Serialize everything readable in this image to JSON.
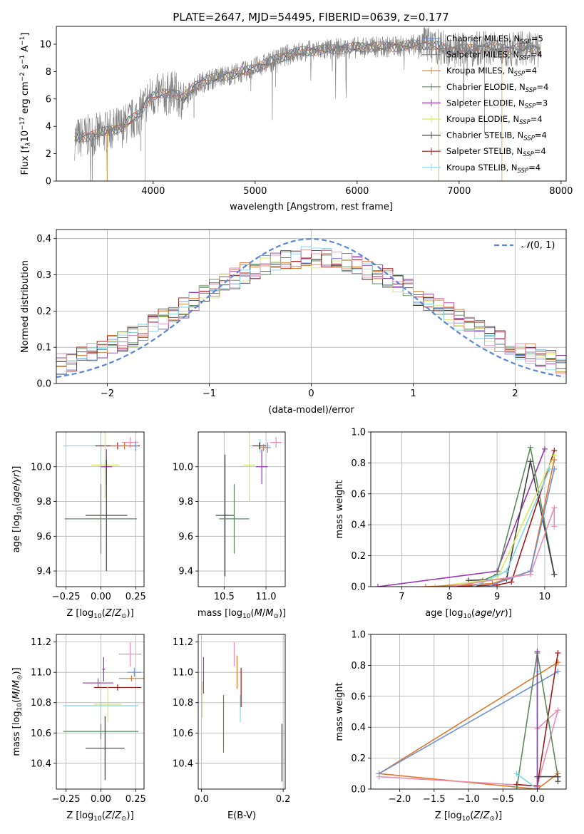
{
  "figure": {
    "title": "PLATE=2647, MJD=54495, FIBERID=0639, z=0.177"
  },
  "colors": {
    "Chabrier MILES": "#6f91d8",
    "Salpeter MILES": "#8c8c8c",
    "Kroupa MILES": "#e0782a",
    "Chabrier ELODIE": "#5a8a5e",
    "Salpeter ELODIE": "#9a35b5",
    "Kroupa ELODIE": "#d4e860",
    "Chabrier STELIB": "#404040",
    "Salpeter STELIB": "#a01818",
    "Kroupa STELIB": "#7fd6e6",
    "pink": "#e88cb4",
    "normal": "#5b86d6"
  },
  "chart_data": [
    {
      "id": "spectrum",
      "type": "line",
      "xlabel": "wavelength [Angstrom, rest frame]",
      "ylabel_parts": [
        "Flux [f",
        "λ",
        "10",
        "−17",
        " erg cm",
        "−2",
        " s",
        "−1",
        " A",
        "−1",
        "]"
      ],
      "xlim": [
        3050,
        8050
      ],
      "ylim": [
        0,
        11.3
      ],
      "xticks": [
        4000,
        5000,
        6000,
        7000,
        8000
      ],
      "yticks": [
        0,
        2,
        4,
        6,
        8,
        10
      ],
      "legend_position": "right",
      "legend": [
        {
          "text": "Chabrier MILES, N",
          "sub": "SSP",
          "tail": "=5",
          "color": "Chabrier MILES"
        },
        {
          "text": "Salpeter MILES, N",
          "sub": "SSP",
          "tail": "=4",
          "color": "Salpeter MILES"
        },
        {
          "text": "Kroupa MILES, N",
          "sub": "SSP",
          "tail": "=4",
          "color": "Kroupa MILES"
        },
        {
          "text": "Chabrier ELODIE, N",
          "sub": "SSP",
          "tail": "=4",
          "color": "Chabrier ELODIE"
        },
        {
          "text": "Salpeter ELODIE, N",
          "sub": "SSP",
          "tail": "=3",
          "color": "Salpeter ELODIE"
        },
        {
          "text": "Kroupa ELODIE, N",
          "sub": "SSP",
          "tail": "=4",
          "color": "Kroupa ELODIE"
        },
        {
          "text": "Chabrier STELIB, N",
          "sub": "SSP",
          "tail": "=4",
          "color": "Chabrier STELIB"
        },
        {
          "text": "Salpeter STELIB, N",
          "sub": "SSP",
          "tail": "=4",
          "color": "Salpeter STELIB"
        },
        {
          "text": "Kroupa STELIB, N",
          "sub": "SSP",
          "tail": "=4",
          "color": "Kroupa STELIB"
        }
      ],
      "continuum": [
        [
          3230,
          3.1
        ],
        [
          3500,
          3.5
        ],
        [
          3700,
          4.0
        ],
        [
          3850,
          4.8
        ],
        [
          3950,
          6.0
        ],
        [
          4050,
          6.3
        ],
        [
          4200,
          6.5
        ],
        [
          4300,
          6.0
        ],
        [
          4400,
          6.9
        ],
        [
          4500,
          7.3
        ],
        [
          4700,
          7.7
        ],
        [
          4900,
          8.0
        ],
        [
          5000,
          8.3
        ],
        [
          5150,
          8.7
        ],
        [
          5300,
          9.2
        ],
        [
          5500,
          9.5
        ],
        [
          5700,
          9.6
        ],
        [
          5900,
          9.7
        ],
        [
          6100,
          9.8
        ],
        [
          6300,
          9.8
        ],
        [
          6500,
          9.9
        ],
        [
          6700,
          10.0
        ],
        [
          6900,
          9.6
        ],
        [
          7100,
          9.6
        ],
        [
          7300,
          9.8
        ],
        [
          7500,
          9.6
        ],
        [
          7700,
          9.8
        ],
        [
          7800,
          9.5
        ]
      ]
    },
    {
      "id": "residual-histogram",
      "type": "histogram",
      "xlabel": "(data-model)/error",
      "ylabel": "Normed distribution",
      "xlim": [
        -2.5,
        2.5
      ],
      "ylim": [
        0,
        0.425
      ],
      "xticks": [
        -2,
        -1,
        0,
        1,
        2
      ],
      "xtick_labels": [
        "−2",
        "−1",
        "0",
        "1",
        "2"
      ],
      "yticks": [
        0,
        0.1,
        0.2,
        0.3,
        0.4
      ],
      "ytick_labels": [
        "0.0",
        "0.1",
        "0.2",
        "0.3",
        "0.4"
      ],
      "grid": true,
      "bin_width": 0.1,
      "legend": {
        "text": "(0, 1)",
        "symbol": "𝒩",
        "position": "top-right"
      },
      "reference": {
        "type": "normal",
        "mean": 0,
        "sigma": 1,
        "style": "dashed"
      }
    },
    {
      "id": "age-vs-Z",
      "type": "errorbar",
      "xlabel": "Z [log10(Z/Z⊙)]",
      "ylabel": "age  [log10(age/yr)]",
      "xlim": [
        -0.32,
        0.31
      ],
      "ylim": [
        9.31,
        10.2
      ],
      "xticks": [
        -0.25,
        0,
        0.25
      ],
      "xtick_labels": [
        "−0.25",
        "0.00",
        "0.25"
      ],
      "yticks": [
        9.4,
        9.6,
        9.8,
        10.0
      ],
      "ytick_labels": [
        "9.4",
        "9.6",
        "9.8",
        "10.0"
      ],
      "points": [
        {
          "c": "Kroupa STELIB",
          "x": 0.0,
          "y": 10.12,
          "xerr": 0.27,
          "yerr": 0.15
        },
        {
          "c": "pink",
          "x": 0.21,
          "y": 10.14,
          "xerr": 0.06,
          "yerr": 0.03
        },
        {
          "c": "Salpeter STELIB",
          "x": 0.12,
          "y": 10.12,
          "xerr": 0.16,
          "yerr": 0.02
        },
        {
          "c": "Kroupa MILES",
          "x": 0.17,
          "y": 10.12,
          "xerr": 0.1,
          "yerr": 0.02
        },
        {
          "c": "Chabrier MILES",
          "x": 0.25,
          "y": 10.12,
          "xerr": 0.02,
          "yerr": 0.03
        },
        {
          "c": "Kroupa ELODIE",
          "x": 0.03,
          "y": 10.01,
          "xerr": 0.1,
          "yerr": 0.19
        },
        {
          "c": "Salpeter ELODIE",
          "x": 0.04,
          "y": 10.0,
          "xerr": 0.04,
          "yerr": 0.1
        },
        {
          "c": "Chabrier STELIB",
          "x": 0.04,
          "y": 9.72,
          "xerr": 0.15,
          "yerr": 0.32
        },
        {
          "c": "Chabrier ELODIE",
          "x": 0.0,
          "y": 9.7,
          "xerr": 0.26,
          "yerr": 0.2
        }
      ]
    },
    {
      "id": "age-vs-mass",
      "type": "errorbar",
      "xlabel": "mass [log10(M/M⊙)]",
      "ylabel": "",
      "xlim": [
        10.19,
        11.23
      ],
      "ylim": [
        9.31,
        10.2
      ],
      "xticks": [
        10.5,
        11.0
      ],
      "xtick_labels": [
        "10.5",
        "11.0"
      ],
      "yticks": [
        9.4,
        9.6,
        9.8,
        10.0
      ],
      "ytick_labels": [
        "9.4",
        "9.6",
        "9.8",
        "10.0"
      ],
      "points": [
        {
          "c": "pink",
          "x": 11.12,
          "y": 10.14,
          "xerr": 0.07,
          "yerr": 0.03
        },
        {
          "c": "Kroupa STELIB",
          "x": 10.93,
          "y": 10.12,
          "xerr": 0.12,
          "yerr": 0.04
        },
        {
          "c": "Salpeter STELIB",
          "x": 10.92,
          "y": 10.12,
          "xerr": 0.08,
          "yerr": 0.02
        },
        {
          "c": "Chabrier MILES",
          "x": 11.02,
          "y": 10.11,
          "xerr": 0.04,
          "yerr": 0.03
        },
        {
          "c": "Kroupa MILES",
          "x": 10.97,
          "y": 10.11,
          "xerr": 0.05,
          "yerr": 0.02
        },
        {
          "c": "Kroupa ELODIE",
          "x": 10.8,
          "y": 10.01,
          "xerr": 0.07,
          "yerr": 0.21
        },
        {
          "c": "Salpeter ELODIE",
          "x": 10.95,
          "y": 10.0,
          "xerr": 0.07,
          "yerr": 0.1
        },
        {
          "c": "Chabrier STELIB",
          "x": 10.51,
          "y": 9.72,
          "xerr": 0.11,
          "yerr": 0.35
        },
        {
          "c": "Chabrier ELODIE",
          "x": 10.62,
          "y": 9.7,
          "xerr": 0.18,
          "yerr": 0.2
        }
      ]
    },
    {
      "id": "weight-vs-age",
      "type": "line",
      "xlabel": "age  [log10(age/yr)]",
      "ylabel": "mass weight",
      "xlim": [
        6.35,
        10.45
      ],
      "ylim": [
        0,
        1.0
      ],
      "xticks": [
        7,
        8,
        9,
        10
      ],
      "xtick_labels": [
        "7",
        "8",
        "9",
        "10"
      ],
      "yticks": [
        0,
        0.2,
        0.4,
        0.6,
        0.8,
        1.0
      ],
      "ytick_labels": [
        "0.0",
        "0.2",
        "0.4",
        "0.6",
        "0.8",
        "1.0"
      ],
      "grid": true,
      "series": [
        {
          "c": "Salpeter ELODIE",
          "x": [
            6.5,
            9.0,
            10.0
          ],
          "y": [
            0.0,
            0.1,
            0.89
          ]
        },
        {
          "c": "Chabrier ELODIE",
          "x": [
            8.7,
            9.0,
            9.7,
            10.2
          ],
          "y": [
            0.04,
            0.08,
            0.9,
            0.08
          ]
        },
        {
          "c": "Chabrier STELIB",
          "x": [
            8.4,
            9.2,
            9.7,
            10.2
          ],
          "y": [
            0.04,
            0.05,
            0.81,
            0.08
          ]
        },
        {
          "c": "Salpeter STELIB",
          "x": [
            8.0,
            9.0,
            9.3,
            10.2
          ],
          "y": [
            0.0,
            0.01,
            0.03,
            0.88
          ]
        },
        {
          "c": "Kroupa ELODIE",
          "x": [
            7.7,
            9.0,
            10.2
          ],
          "y": [
            0.0,
            0.05,
            0.85
          ]
        },
        {
          "c": "Kroupa MILES",
          "x": [
            7.5,
            8.9,
            9.7,
            10.2
          ],
          "y": [
            0.0,
            0.02,
            0.1,
            0.82
          ]
        },
        {
          "c": "Chabrier MILES",
          "x": [
            8.8,
            9.7,
            10.2
          ],
          "y": [
            0.0,
            0.1,
            0.76
          ]
        },
        {
          "c": "Kroupa STELIB",
          "x": [
            8.5,
            9.2,
            10.1
          ],
          "y": [
            0.0,
            0.1,
            0.76
          ]
        },
        {
          "c": "pink",
          "x": [
            8.0,
            9.7,
            10.2,
            10.2
          ],
          "y": [
            0.0,
            0.08,
            0.51,
            0.39
          ]
        }
      ]
    },
    {
      "id": "mass-vs-Z",
      "type": "errorbar",
      "xlabel": "Z [log10(Z/Z⊙)]",
      "ylabel": "mass [log10(M/M⊙)]",
      "xlim": [
        -0.32,
        0.31
      ],
      "ylim": [
        10.23,
        11.25
      ],
      "xticks": [
        -0.25,
        0,
        0.25
      ],
      "xtick_labels": [
        "−0.25",
        "0.00",
        "0.25"
      ],
      "yticks": [
        10.4,
        10.6,
        10.8,
        11.0,
        11.2
      ],
      "ytick_labels": [
        "10.4",
        "10.6",
        "10.8",
        "11.0",
        "11.2"
      ],
      "points": [
        {
          "c": "pink",
          "x": 0.21,
          "y": 11.12,
          "xerr": 0.08,
          "yerr": 0.08
        },
        {
          "c": "Salpeter ELODIE",
          "x": 0.02,
          "y": 11.02,
          "xerr": 0.01,
          "yerr": 0.08
        },
        {
          "c": "Chabrier MILES",
          "x": 0.24,
          "y": 11.0,
          "xerr": 0.05,
          "yerr": 0.03
        },
        {
          "c": "Kroupa MILES",
          "x": 0.22,
          "y": 10.96,
          "xerr": 0.09,
          "yerr": 0.02
        },
        {
          "c": "Salpeter ELODIE",
          "x": -0.02,
          "y": 10.93,
          "xerr": 0.11,
          "yerr": 0.03
        },
        {
          "c": "Salpeter STELIB",
          "x": 0.12,
          "y": 10.9,
          "xerr": 0.17,
          "yerr": 0.02
        },
        {
          "c": "Kroupa ELODIE",
          "x": 0.05,
          "y": 10.79,
          "xerr": 0.1,
          "yerr": 0.12
        },
        {
          "c": "Kroupa STELIB",
          "x": 0.0,
          "y": 10.78,
          "xerr": 0.27,
          "yerr": 0.1
        },
        {
          "c": "Chabrier ELODIE",
          "x": 0.0,
          "y": 10.61,
          "xerr": 0.27,
          "yerr": 0.05
        },
        {
          "c": "Chabrier STELIB",
          "x": 0.03,
          "y": 10.5,
          "xerr": 0.14,
          "yerr": 0.21
        }
      ]
    },
    {
      "id": "mass-vs-EBV",
      "type": "errorbar",
      "xlabel": "E(B-V)",
      "ylabel": "",
      "xlim": [
        -0.008,
        0.205
      ],
      "ylim": [
        10.23,
        11.25
      ],
      "xticks": [
        0,
        0.2
      ],
      "xtick_labels": [
        "0.0",
        "0.2"
      ],
      "yticks": [
        10.4,
        10.6,
        10.8,
        11.0,
        11.2
      ],
      "ytick_labels": [
        "10.4",
        "10.6",
        "10.8",
        "11.0",
        "11.2"
      ],
      "points": [
        {
          "c": "pink",
          "x": 0.08,
          "y": 11.12,
          "xerr": 0,
          "yerr": 0.08
        },
        {
          "c": "Salpeter ELODIE",
          "x": 0.005,
          "y": 10.98,
          "xerr": 0,
          "yerr": 0.12
        },
        {
          "c": "Kroupa MILES",
          "x": 0.087,
          "y": 11.0,
          "xerr": 0,
          "yerr": 0.11
        },
        {
          "c": "Salpeter STELIB",
          "x": 0.097,
          "y": 10.9,
          "xerr": 0,
          "yerr": 0.13
        },
        {
          "c": "Kroupa ELODIE",
          "x": 0.002,
          "y": 10.82,
          "xerr": 0,
          "yerr": 0.12
        },
        {
          "c": "Kroupa STELIB",
          "x": 0.095,
          "y": 10.76,
          "xerr": 0,
          "yerr": 0.09
        },
        {
          "c": "Chabrier ELODIE",
          "x": 0.054,
          "y": 10.66,
          "xerr": 0,
          "yerr": 0.19
        },
        {
          "c": "Chabrier STELIB",
          "x": 0.197,
          "y": 10.47,
          "xerr": 0,
          "yerr": 0.19
        }
      ]
    },
    {
      "id": "weight-vs-Z",
      "type": "line",
      "xlabel": "Z [log10(Z/Z⊙)]",
      "ylabel": "mass weight",
      "xlim": [
        -2.42,
        0.42
      ],
      "ylim": [
        0,
        1.0
      ],
      "xticks": [
        -2.0,
        -1.5,
        -1.0,
        -0.5,
        0.0
      ],
      "xtick_labels": [
        "−2.0",
        "−1.5",
        "−1.0",
        "−0.5",
        "0.0"
      ],
      "yticks": [
        0,
        0.2,
        0.4,
        0.6,
        0.8,
        1.0
      ],
      "ytick_labels": [
        "0.0",
        "0.2",
        "0.4",
        "0.6",
        "0.8",
        "1.0"
      ],
      "grid": true,
      "series": [
        {
          "c": "Kroupa MILES",
          "x": [
            0.3,
            -2.3,
            -0.0,
            0.3
          ],
          "y": [
            0.82,
            0.1,
            0.0,
            0.1
          ]
        },
        {
          "c": "Chabrier MILES",
          "x": [
            0.3,
            -2.3
          ],
          "y": [
            0.76,
            0.1
          ]
        },
        {
          "c": "pink",
          "x": [
            -2.3,
            0.0,
            0.3,
            0.0
          ],
          "y": [
            0.08,
            0.02,
            0.51,
            0.39
          ]
        },
        {
          "c": "Salpeter STELIB",
          "x": [
            -0.3,
            0.0,
            0.3
          ],
          "y": [
            0.03,
            0.02,
            0.88
          ]
        },
        {
          "c": "Chabrier ELODIE",
          "x": [
            -0.3,
            0.0,
            0.3
          ],
          "y": [
            0.0,
            0.88,
            0.08
          ]
        },
        {
          "c": "Kroupa STELIB",
          "x": [
            -0.3,
            0.0,
            0.0
          ],
          "y": [
            0.1,
            0.0,
            0.76
          ]
        },
        {
          "c": "Chabrier STELIB",
          "x": [
            0.0,
            0.3,
            0.3
          ],
          "y": [
            0.08,
            0.08,
            0.05
          ]
        },
        {
          "c": "Salpeter ELODIE",
          "x": [
            0.0,
            0.0
          ],
          "y": [
            0.89,
            0.0
          ]
        }
      ]
    }
  ]
}
